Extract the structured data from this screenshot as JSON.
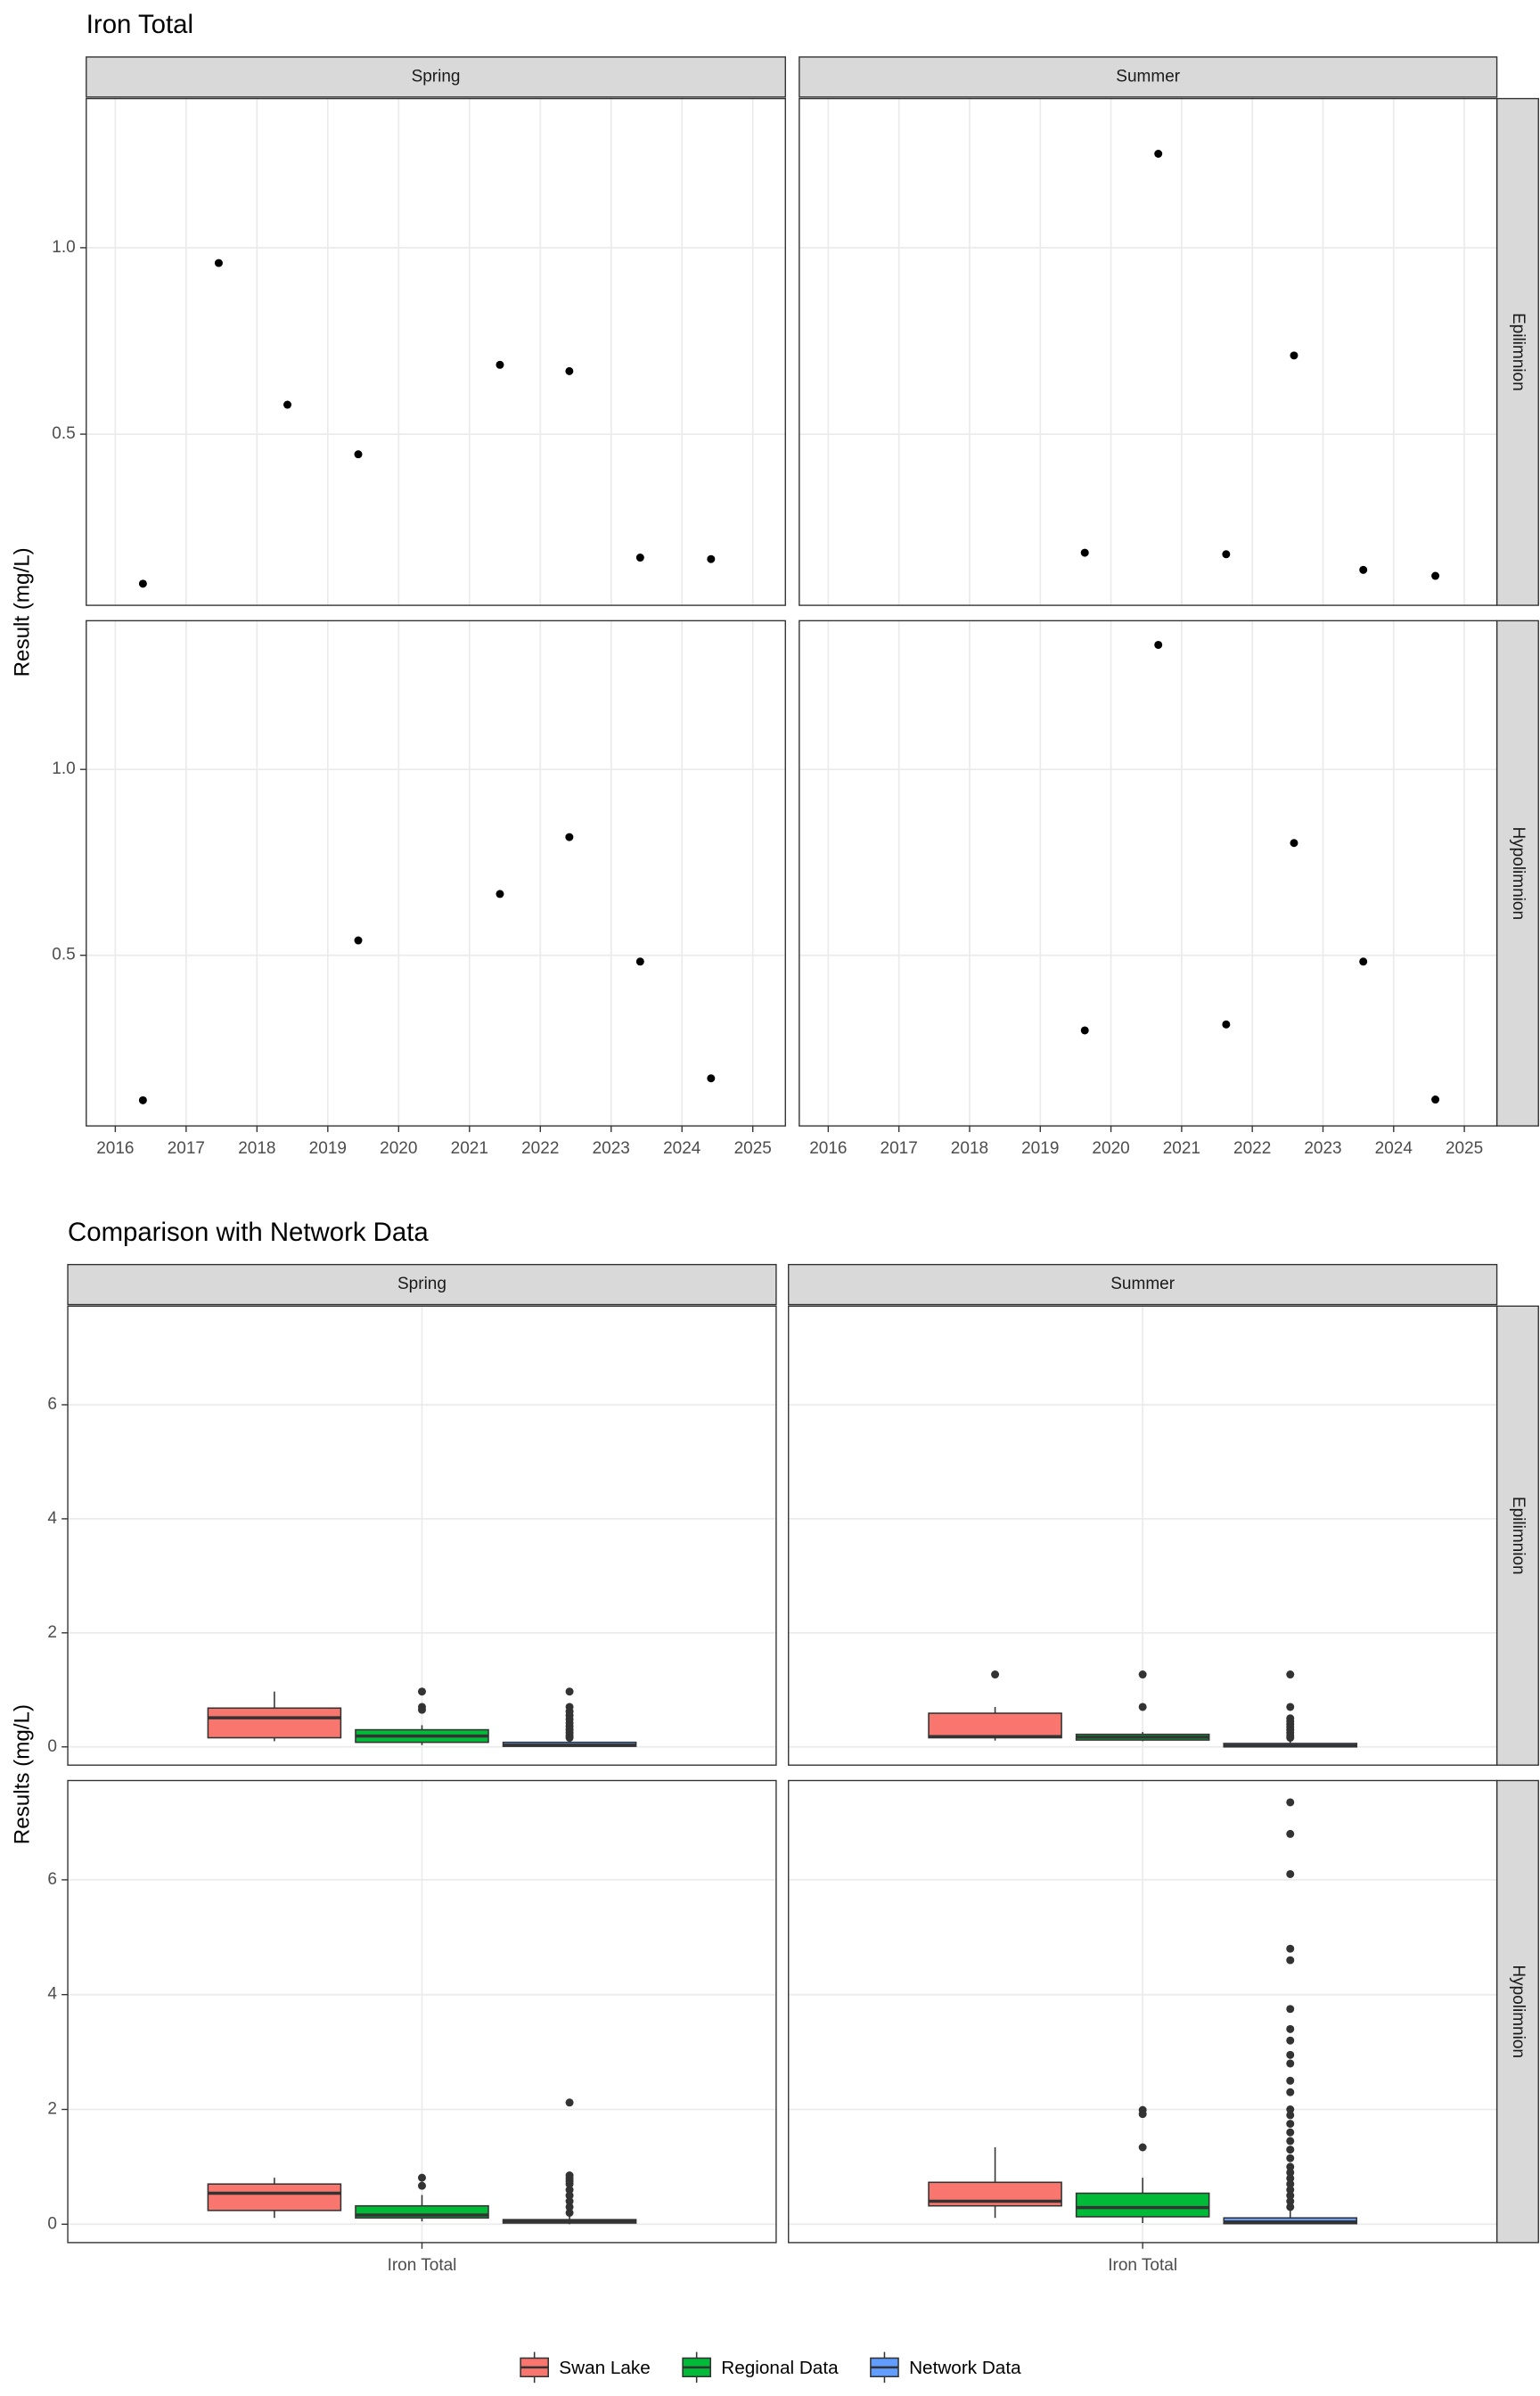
{
  "chart_data": [
    {
      "type": "scatter",
      "title": "Iron Total",
      "y_label": "Result (mg/L)",
      "columns": [
        "Spring",
        "Summer"
      ],
      "rows": [
        "Epilimnion",
        "Hypolimnion"
      ],
      "xlim": [
        2015.59,
        2025.46
      ],
      "xticks": [
        2016,
        2017,
        2018,
        2019,
        2020,
        2021,
        2022,
        2023,
        2024,
        2025
      ],
      "ylim": [
        0.041,
        1.4
      ],
      "yticks": [
        0.5,
        {
          "value": 1,
          "label": "1.0"
        }
      ],
      "grid": true,
      "color": "#000000",
      "panels": [
        [
          {
            "x": [
              2016.39,
              2017.46,
              2018.43,
              2019.43,
              2021.43,
              2022.41,
              2023.41,
              2024.41
            ],
            "values": [
              0.099,
              0.959,
              0.579,
              0.446,
              0.686,
              0.669,
              0.169,
              0.165
            ]
          },
          {
            "x": [
              2019.63,
              2020.67,
              2021.63,
              2022.59,
              2023.57,
              2024.59
            ],
            "values": [
              0.182,
              1.252,
              0.178,
              0.711,
              0.136,
              0.12
            ]
          }
        ],
        [
          {
            "x": [
              2016.39,
              2019.43,
              2021.43,
              2022.41,
              2023.41,
              2024.41
            ],
            "values": [
              0.11,
              0.54,
              0.665,
              0.818,
              0.483,
              0.169
            ]
          },
          {
            "x": [
              2019.63,
              2020.67,
              2021.63,
              2022.59,
              2023.57,
              2024.59
            ],
            "values": [
              0.298,
              1.335,
              0.314,
              0.802,
              0.483,
              0.112
            ]
          }
        ]
      ]
    },
    {
      "type": "box",
      "title": "Comparison with Network Data",
      "y_label": "Results (mg/L)",
      "columns": [
        "Spring",
        "Summer"
      ],
      "rows": [
        "Epilimnion",
        "Hypolimnion"
      ],
      "categories": [
        "Iron Total"
      ],
      "ylim": [
        -0.32,
        7.73
      ],
      "yticks": [
        0,
        2,
        4,
        6
      ],
      "grid": true,
      "legend": "bottom",
      "series": [
        {
          "name": "Swan Lake",
          "color": "#F8766D",
          "panels": [
            [
              {
                "min": 0.1,
                "q1": 0.16,
                "median": 0.51,
                "q3": 0.68,
                "max": 0.97,
                "outliers": []
              },
              {
                "min": 0.11,
                "q1": 0.16,
                "median": 0.18,
                "q3": 0.59,
                "max": 0.7,
                "outliers": [
                  1.27
                ]
              }
            ],
            [
              {
                "min": 0.11,
                "q1": 0.24,
                "median": 0.54,
                "q3": 0.7,
                "max": 0.81,
                "outliers": []
              },
              {
                "min": 0.11,
                "q1": 0.32,
                "median": 0.4,
                "q3": 0.73,
                "max": 1.34,
                "outliers": []
              }
            ]
          ]
        },
        {
          "name": "Regional Data",
          "color": "#00BA38",
          "panels": [
            [
              {
                "min": 0.03,
                "q1": 0.08,
                "median": 0.19,
                "q3": 0.3,
                "max": 0.38,
                "outliers": [
                  0.97,
                  0.7,
                  0.65
                ]
              },
              {
                "min": 0.1,
                "q1": 0.12,
                "median": 0.17,
                "q3": 0.22,
                "max": 0.26,
                "outliers": [
                  1.27,
                  0.7
                ]
              }
            ],
            [
              {
                "min": 0.05,
                "q1": 0.11,
                "median": 0.16,
                "q3": 0.32,
                "max": 0.51,
                "outliers": [
                  0.81,
                  0.67
                ]
              },
              {
                "min": 0.02,
                "q1": 0.13,
                "median": 0.29,
                "q3": 0.54,
                "max": 0.81,
                "outliers": [
                  1.99,
                  1.92,
                  1.34
                ]
              }
            ]
          ]
        },
        {
          "name": "Network Data",
          "color": "#619CFF",
          "panels": [
            [
              {
                "min": 0,
                "q1": 0.01,
                "median": 0.03,
                "q3": 0.08,
                "max": 0.13,
                "outliers": [
                  0.97,
                  0.7,
                  0.62,
                  0.55,
                  0.48,
                  0.42,
                  0.36,
                  0.3,
                  0.25,
                  0.2,
                  0.16
                ]
              },
              {
                "min": 0,
                "q1": 0,
                "median": 0.02,
                "q3": 0.06,
                "max": 0.13,
                "outliers": [
                  1.27,
                  0.7,
                  0.5,
                  0.45,
                  0.4,
                  0.35,
                  0.3,
                  0.25,
                  0.2,
                  0.16
                ]
              }
            ],
            [
              {
                "min": 0,
                "q1": 0.02,
                "median": 0.05,
                "q3": 0.08,
                "max": 0.15,
                "outliers": [
                  2.12,
                  0.85,
                  0.8,
                  0.75,
                  0.7,
                  0.6,
                  0.5,
                  0.4,
                  0.3,
                  0.2
                ]
              },
              {
                "min": 0,
                "q1": 0.01,
                "median": 0.04,
                "q3": 0.11,
                "max": 0.28,
                "outliers": [
                  7.35,
                  6.8,
                  6.1,
                  4.8,
                  4.6,
                  3.75,
                  3.4,
                  3.2,
                  2.95,
                  2.8,
                  2.5,
                  2.3,
                  2,
                  1.9,
                  1.75,
                  1.6,
                  1.45,
                  1.3,
                  1.15,
                  1,
                  0.9,
                  0.8,
                  0.7,
                  0.6,
                  0.5,
                  0.4,
                  0.3
                ]
              }
            ]
          ]
        }
      ]
    }
  ]
}
